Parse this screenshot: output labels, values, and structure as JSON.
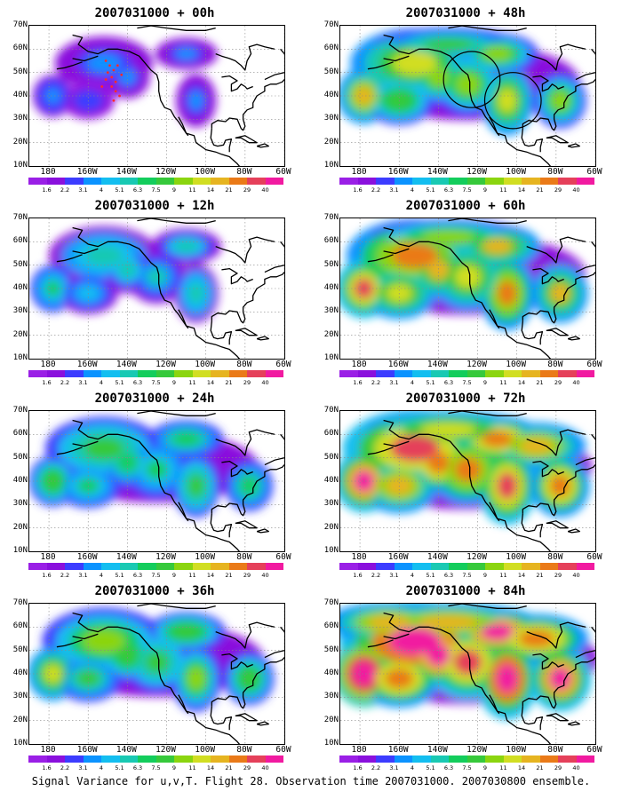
{
  "figure": {
    "caption": "Signal Variance for u,v,T. Flight 28. Observation time 2007031000. 2007030800 ensemble.",
    "lat_labels": [
      "70N",
      "60N",
      "50N",
      "40N",
      "30N",
      "20N",
      "10N"
    ],
    "lon_labels": [
      "180",
      "160W",
      "140W",
      "120W",
      "100W",
      "80W",
      "60W"
    ],
    "lon_range": [
      -190,
      -60
    ],
    "lat_range": [
      10,
      70
    ],
    "colorbar": {
      "labels": [
        "1.6",
        "2.2",
        "3.1",
        "4",
        "5.1",
        "6.3",
        "7.5",
        "9",
        "11",
        "14",
        "21",
        "29",
        "40"
      ],
      "colors": [
        "#9a1fe6",
        "#8a10dd",
        "#3c3cff",
        "#0b93ff",
        "#13bef0",
        "#19c9b3",
        "#13cd5c",
        "#36c93b",
        "#8bd50f",
        "#d1de22",
        "#e6b420",
        "#ea7a18",
        "#e5405a",
        "#f11aa0"
      ]
    }
  },
  "panels": [
    {
      "title": "2007031000 + 00h",
      "level": 0.15,
      "rings": [],
      "dots": true
    },
    {
      "title": "2007031000 + 48h",
      "level": 0.55,
      "rings": [
        [
          -123,
          47,
          16
        ],
        [
          -102,
          38,
          16
        ]
      ],
      "dots": false
    },
    {
      "title": "2007031000 + 12h",
      "level": 0.3,
      "rings": [],
      "dots": false
    },
    {
      "title": "2007031000 + 60h",
      "level": 0.65,
      "rings": [],
      "dots": false
    },
    {
      "title": "2007031000 + 24h",
      "level": 0.4,
      "rings": [],
      "dots": false
    },
    {
      "title": "2007031000 + 72h",
      "level": 0.75,
      "rings": [],
      "dots": false
    },
    {
      "title": "2007031000 + 36h",
      "level": 0.48,
      "rings": [],
      "dots": false
    },
    {
      "title": "2007031000 + 84h",
      "level": 0.85,
      "rings": [],
      "dots": false
    }
  ],
  "fields": {
    "blobs": [
      [
        -152,
        54,
        22,
        10,
        1.0
      ],
      [
        -178,
        40,
        9,
        8,
        1.1
      ],
      [
        -140,
        48,
        10,
        8,
        0.9
      ],
      [
        -160,
        38,
        12,
        7,
        0.8
      ],
      [
        -105,
        38,
        9,
        10,
        1.0
      ],
      [
        -110,
        58,
        14,
        6,
        0.9
      ],
      [
        -125,
        45,
        12,
        9,
        0.85
      ],
      [
        -78,
        38,
        9,
        8,
        0.9
      ],
      [
        -135,
        62,
        25,
        5,
        0.7
      ],
      [
        -90,
        55,
        15,
        6,
        0.8
      ],
      [
        -165,
        62,
        18,
        5,
        0.7
      ],
      [
        -70,
        30,
        8,
        6,
        0.8
      ]
    ]
  }
}
